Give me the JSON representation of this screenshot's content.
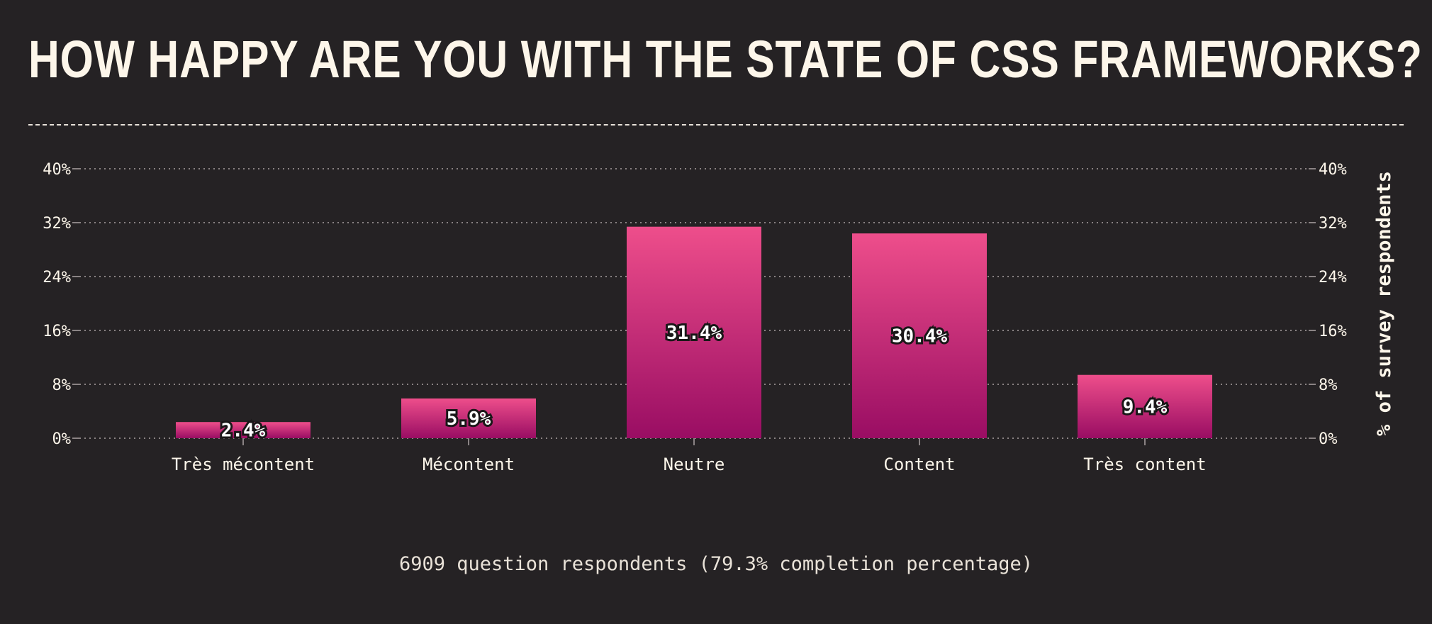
{
  "title": "HOW HAPPY ARE YOU WITH THE STATE OF CSS FRAMEWORKS?",
  "footer": "6909 question respondents (79.3% completion percentage)",
  "colors": {
    "background": "#252224",
    "bar_top": "#ee4e8b",
    "bar_bottom": "#990d63",
    "text": "#fdf6ea",
    "grid": "#8a8384"
  },
  "chart_data": {
    "type": "bar",
    "categories": [
      "Très mécontent",
      "Mécontent",
      "Neutre",
      "Content",
      "Très content"
    ],
    "values": [
      2.4,
      5.9,
      31.4,
      30.4,
      9.4
    ],
    "value_labels": [
      "2.4%",
      "5.9%",
      "31.4%",
      "30.4%",
      "9.4%"
    ],
    "yticks": [
      "0%",
      "8%",
      "16%",
      "24%",
      "32%",
      "40%"
    ],
    "ylim": [
      0,
      40
    ],
    "ylabel": "% of survey respondents",
    "grid": true
  }
}
